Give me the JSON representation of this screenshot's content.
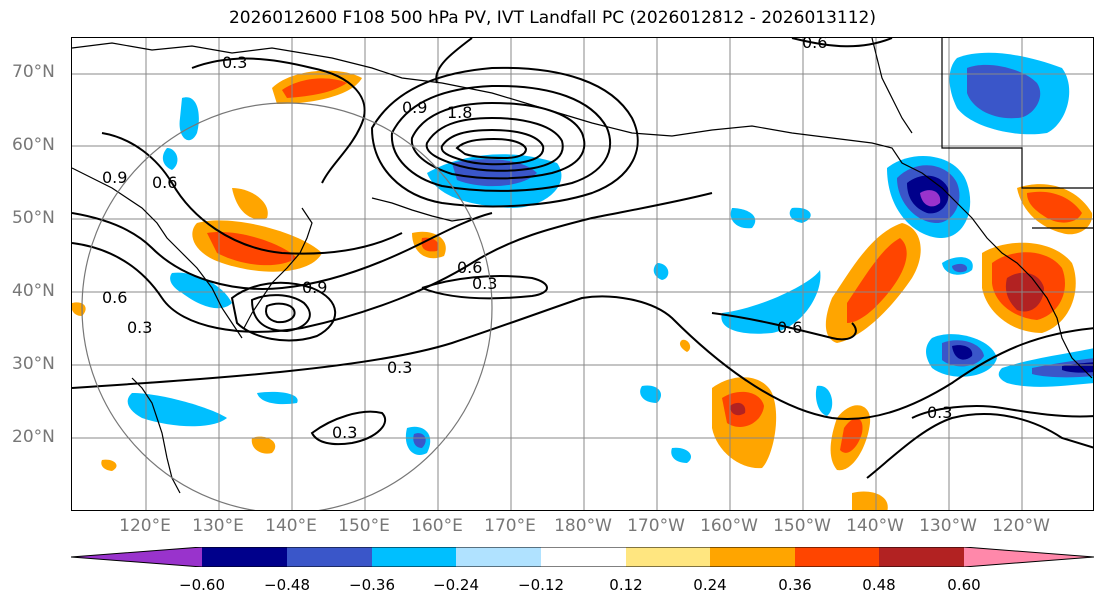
{
  "title": "2026012600 F108 500 hPa PV, IVT Landfall PC (2026012812 - 2026013112)",
  "lat_labels": [
    "70°N",
    "60°N",
    "50°N",
    "40°N",
    "30°N",
    "20°N"
  ],
  "lon_labels": [
    "120°E",
    "130°E",
    "140°E",
    "150°E",
    "160°E",
    "170°E",
    "180°W",
    "170°W",
    "160°W",
    "150°W",
    "140°W",
    "130°W",
    "120°W"
  ],
  "contour_labels": [
    "0.3",
    "0.6",
    "0.9",
    "0.6",
    "0.3",
    "0.9",
    "0.6",
    "0.3",
    "0.9",
    "1.8",
    "0.6",
    "0.3",
    "0.3",
    "0.6",
    "0.3"
  ],
  "colorbar": {
    "ticks": [
      "−0.60",
      "−0.48",
      "−0.36",
      "−0.24",
      "−0.12",
      "0.12",
      "0.24",
      "0.36",
      "0.48",
      "0.60"
    ],
    "colors": [
      "#9933cc",
      "#00008b",
      "#3a56c9",
      "#00bfff",
      "#b0e2ff",
      "#ffffff",
      "#ffe680",
      "#ffa500",
      "#ff4500",
      "#b22222",
      "#ff88aa"
    ]
  }
}
